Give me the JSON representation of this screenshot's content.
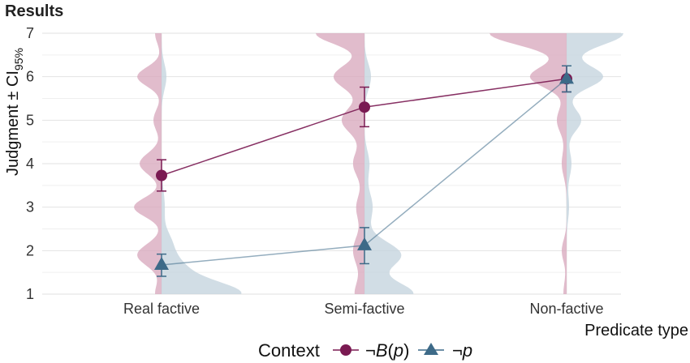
{
  "chart_data": {
    "type": "scatter",
    "title": "Results",
    "xlabel": "Predicate type",
    "ylabel_main": "Judgment ± CI",
    "ylabel_sub": "95%",
    "ylim": [
      1,
      7
    ],
    "yticks": [
      "1",
      "2",
      "3",
      "4",
      "5",
      "6",
      "7"
    ],
    "categories": [
      "Real factive",
      "Semi-factive",
      "Non-factive"
    ],
    "grid": true,
    "legend": {
      "placement": "bottom",
      "title": "Context",
      "series_labels": [
        {
          "prefix": "¬",
          "name_italic": "B",
          "open": "(",
          "arg_italic": "p",
          "close": ")"
        },
        {
          "prefix": "¬",
          "name_italic": "p",
          "open": "",
          "arg_italic": "",
          "close": ""
        }
      ]
    },
    "series": [
      {
        "name": "¬B(p)",
        "color": "#7a1a52",
        "marker": "circle",
        "values": [
          3.73,
          5.3,
          5.95
        ],
        "ci_low": [
          3.37,
          4.85,
          5.65
        ],
        "ci_high": [
          4.09,
          5.76,
          6.25
        ]
      },
      {
        "name": "¬p",
        "color": "#3d6a88",
        "marker": "triangle",
        "values": [
          1.67,
          2.12,
          5.95
        ],
        "ci_low": [
          1.41,
          1.7,
          5.65
        ],
        "ci_high": [
          1.92,
          2.53,
          6.25
        ]
      }
    ],
    "violin_colors": {
      "left": "#d8a9be",
      "right": "#c4d3de"
    }
  }
}
